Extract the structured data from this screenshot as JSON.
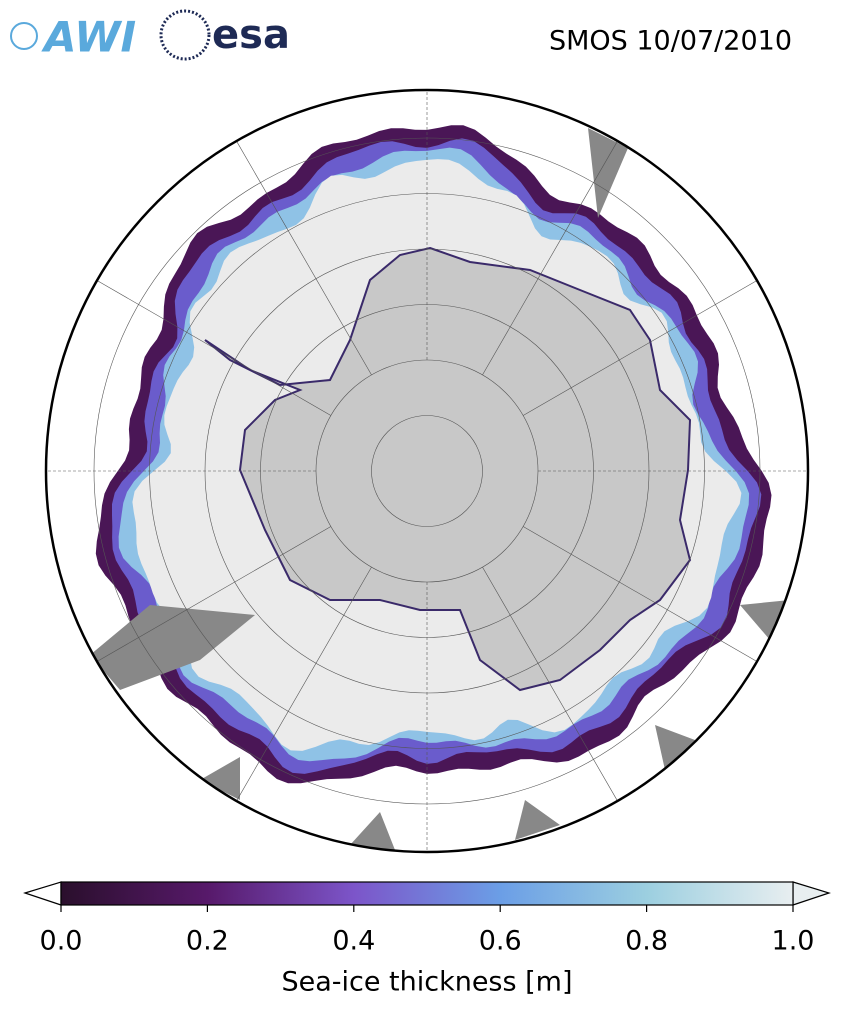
{
  "header": {
    "logos": [
      "AWI",
      "esa"
    ],
    "title": "SMOS 10/07/2010"
  },
  "colorbar": {
    "label": "Sea-ice thickness [m]",
    "lim": [
      0,
      1
    ],
    "ticks": [
      {
        "value": 0,
        "label": "0.0"
      },
      {
        "value": 0.2,
        "label": "0.2"
      },
      {
        "value": 0.4,
        "label": "0.4"
      },
      {
        "value": 0.6,
        "label": "0.6"
      },
      {
        "value": 0.8,
        "label": "0.8"
      },
      {
        "value": 1,
        "label": "1.0"
      }
    ],
    "colors": [
      "#2a0f2c",
      "#57196a",
      "#7c55c9",
      "#6b9ee6",
      "#9ccfe0",
      "#e8eef0"
    ]
  }
}
